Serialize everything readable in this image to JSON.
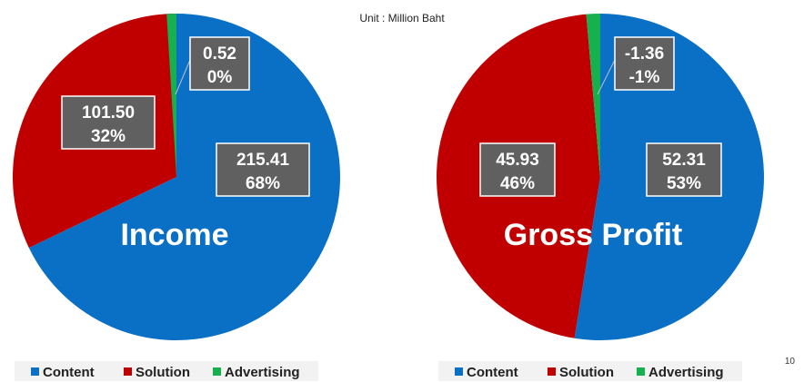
{
  "unit_label": "Unit : Million Baht",
  "page_number": "10",
  "colors": {
    "Content": "#0a70c6",
    "Solution": "#c00000",
    "Advertising": "#16b04f"
  },
  "chart_data": [
    {
      "type": "pie",
      "title": "Income",
      "slices": [
        {
          "name": "Content",
          "value": 215.41,
          "value_label": "215.41",
          "percent_label": "68%"
        },
        {
          "name": "Solution",
          "value": 101.5,
          "value_label": "101.50",
          "percent_label": "32%"
        },
        {
          "name": "Advertising",
          "value": 0.52,
          "value_label": "0.52",
          "percent_label": "0%"
        }
      ],
      "legend": [
        "Content",
        "Solution",
        "Advertising"
      ],
      "legend_position": "bottom"
    },
    {
      "type": "pie",
      "title": "Gross Profit",
      "slices": [
        {
          "name": "Content",
          "value": 52.31,
          "value_label": "52.31",
          "percent_label": "53%"
        },
        {
          "name": "Solution",
          "value": 45.93,
          "value_label": "45.93",
          "percent_label": "46%"
        },
        {
          "name": "Advertising",
          "value": -1.36,
          "value_label": "-1.36",
          "percent_label": "-1%"
        }
      ],
      "legend": [
        "Content",
        "Solution",
        "Advertising"
      ],
      "legend_position": "bottom"
    }
  ]
}
